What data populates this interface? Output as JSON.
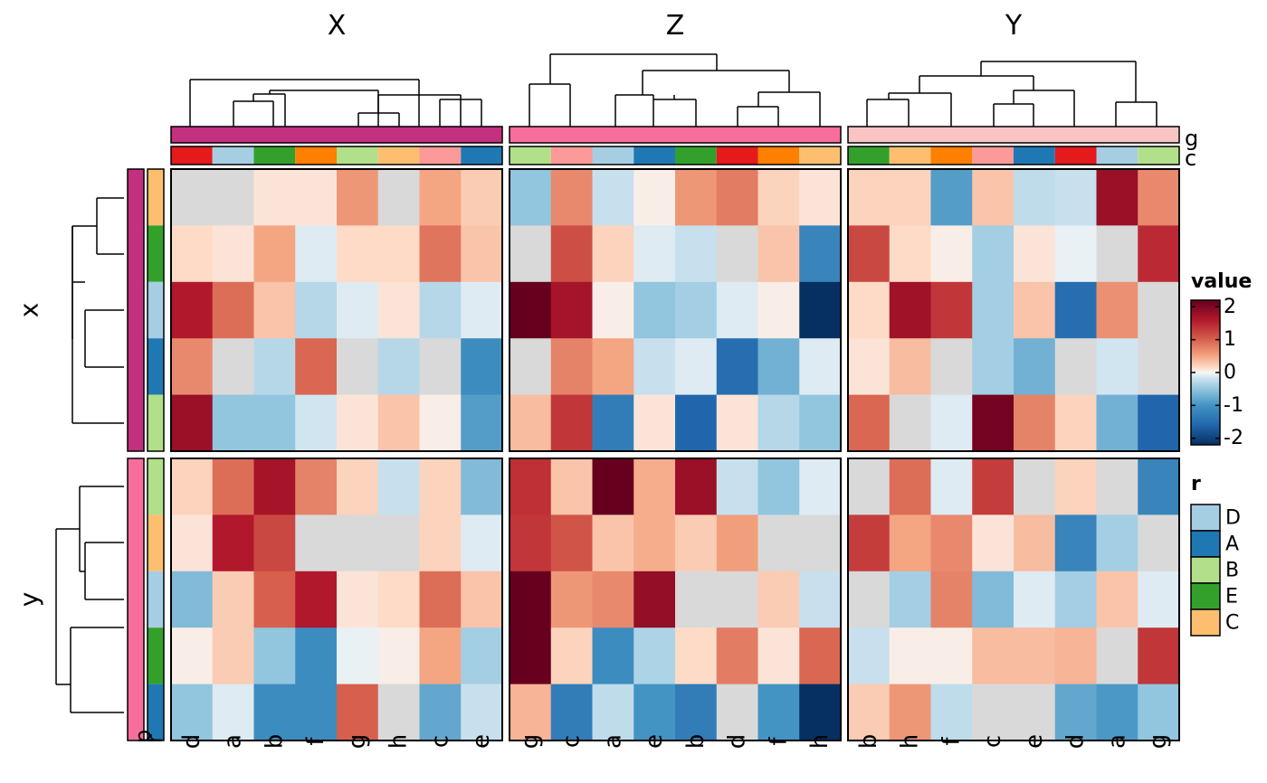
{
  "chart_data": {
    "type": "heatmap",
    "column_groups": [
      {
        "title": "X",
        "columns": [
          "d",
          "a",
          "b",
          "f",
          "g",
          "h",
          "c",
          "e"
        ],
        "g_color": "#C2307F",
        "c_colors": [
          "#E41A1C",
          "#A6CEE3",
          "#33A02C",
          "#FF7F00",
          "#B2DF8A",
          "#FDBF6F",
          "#FB9A99",
          "#1F78B4"
        ]
      },
      {
        "title": "Z",
        "columns": [
          "g",
          "c",
          "a",
          "e",
          "b",
          "d",
          "f",
          "h"
        ],
        "g_color": "#F76D9C",
        "c_colors": [
          "#B2DF8A",
          "#FB9A99",
          "#A6CEE3",
          "#1F78B4",
          "#33A02C",
          "#E41A1C",
          "#FF7F00",
          "#FDBF6F"
        ]
      },
      {
        "title": "Y",
        "columns": [
          "b",
          "h",
          "f",
          "c",
          "e",
          "d",
          "a",
          "g"
        ],
        "g_color": "#FBC4C4",
        "c_colors": [
          "#33A02C",
          "#FDBF6F",
          "#FF7F00",
          "#FB9A99",
          "#1F78B4",
          "#E41A1C",
          "#A6CEE3",
          "#B2DF8A"
        ]
      }
    ],
    "row_groups": [
      {
        "title": "x",
        "p_color": "#C2307F",
        "r_colors": [
          "#FDBF6F",
          "#33A02C",
          "#A6CEE3",
          "#1F78B4",
          "#B2DF8A"
        ]
      },
      {
        "title": "y",
        "p_color": "#F76D9C",
        "r_colors": [
          "#B2DF8A",
          "#FDBF6F",
          "#A6CEE3",
          "#33A02C",
          "#1F78B4"
        ]
      }
    ],
    "values": [
      [
        [
          [
            0,
            0,
            0.1,
            0.1,
            0.6,
            0,
            0.5,
            0.25
          ],
          [
            0.15,
            0.1,
            0.5,
            -0.1,
            0.15,
            0.15,
            0.85,
            0.3
          ],
          [
            1.6,
            0.9,
            0.3,
            -0.3,
            -0.1,
            0.1,
            -0.3,
            -0.1
          ],
          [
            0.7,
            0,
            -0.3,
            0.95,
            0,
            -0.3,
            0,
            -1.1
          ],
          [
            1.8,
            -0.5,
            -0.5,
            -0.15,
            0.1,
            0.3,
            0.05,
            -0.9
          ]
        ],
        [
          [
            -0.5,
            0.7,
            -0.2,
            0.05,
            0.6,
            0.8,
            0.2,
            0.1
          ],
          [
            0,
            1.15,
            0.2,
            -0.1,
            -0.2,
            0,
            0.3,
            -1.2
          ],
          [
            2.3,
            1.7,
            0.05,
            -0.5,
            -0.4,
            -0.1,
            0.05,
            -2.2
          ],
          [
            0,
            0.75,
            0.5,
            -0.2,
            -0.1,
            -1.5,
            -0.7,
            -0.1
          ],
          [
            0.35,
            1.35,
            -1.3,
            0.1,
            -1.6,
            0.1,
            -0.3,
            -0.5
          ]
        ],
        [
          [
            0.2,
            0.2,
            -0.9,
            0.3,
            -0.25,
            -0.2,
            1.8,
            0.7
          ],
          [
            1.2,
            0.15,
            0.05,
            -0.4,
            0.1,
            -0.05,
            0,
            1.45
          ],
          [
            0.15,
            1.75,
            1.35,
            -0.4,
            0.3,
            -1.5,
            0.65,
            0
          ],
          [
            0.1,
            0.35,
            0,
            -0.4,
            -0.7,
            0,
            -0.15,
            0
          ],
          [
            0.95,
            0,
            -0.1,
            2.1,
            0.75,
            0.2,
            -0.7,
            -1.6
          ]
        ]
      ],
      [
        [
          [
            0.2,
            0.9,
            1.7,
            0.75,
            0.2,
            -0.2,
            0.2,
            -0.6
          ],
          [
            0.1,
            1.6,
            1.2,
            0,
            0,
            0,
            0.2,
            -0.1
          ],
          [
            -0.6,
            0.25,
            1.0,
            1.6,
            0.1,
            0.15,
            0.9,
            0.3
          ],
          [
            0.05,
            0.25,
            -0.5,
            -1.1,
            -0.05,
            0.05,
            0.5,
            -0.4
          ],
          [
            -0.5,
            -0.1,
            -1.1,
            -1.1,
            1.0,
            0,
            -0.8,
            -0.2
          ]
        ],
        [
          [
            1.4,
            0.3,
            2.4,
            0.45,
            1.8,
            -0.2,
            -0.5,
            -0.1
          ],
          [
            1.35,
            1.1,
            0.3,
            0.45,
            0.25,
            0.55,
            0,
            0
          ],
          [
            2.4,
            0.6,
            0.7,
            1.85,
            0,
            0,
            0.25,
            -0.2
          ],
          [
            2.4,
            0.2,
            -1.1,
            -0.35,
            0.15,
            0.8,
            0.1,
            0.95
          ],
          [
            0.4,
            -1.3,
            -0.25,
            -1.0,
            -1.3,
            0,
            -1.0,
            -2.6
          ]
        ],
        [
          [
            0,
            0.9,
            -0.1,
            1.3,
            0,
            0.2,
            0,
            -1.2
          ],
          [
            1.3,
            0.5,
            0.7,
            0.1,
            0.35,
            -1.2,
            -0.4,
            0
          ],
          [
            0,
            -0.4,
            0.75,
            -0.6,
            -0.1,
            -0.4,
            0.3,
            -0.1
          ],
          [
            -0.2,
            0.05,
            0.05,
            0.35,
            0.35,
            0.4,
            0,
            1.35
          ],
          [
            0.25,
            0.6,
            -0.25,
            0,
            0,
            -0.8,
            -0.95,
            -0.5
          ]
        ]
      ]
    ],
    "color_scale": {
      "title": "value",
      "min": -2.2,
      "max": 2.2,
      "ticks": [
        2,
        1,
        0,
        -1,
        -2
      ],
      "stops": [
        {
          "v": -2.2,
          "c": "#053061"
        },
        {
          "v": -1.6,
          "c": "#2166AC"
        },
        {
          "v": -1.0,
          "c": "#4393C3"
        },
        {
          "v": -0.5,
          "c": "#92C5DE"
        },
        {
          "v": -0.15,
          "c": "#D1E5F0"
        },
        {
          "v": 0,
          "c": "#F7F7F7"
        },
        {
          "v": 0.15,
          "c": "#FDDBC7"
        },
        {
          "v": 0.5,
          "c": "#F4A582"
        },
        {
          "v": 1.0,
          "c": "#D6604D"
        },
        {
          "v": 1.6,
          "c": "#B2182B"
        },
        {
          "v": 2.2,
          "c": "#67001F"
        }
      ]
    },
    "na_value": 0,
    "na_color": "#D9D9D9",
    "r_legend": {
      "title": "r",
      "items": [
        {
          "label": "D",
          "color": "#A6CEE3"
        },
        {
          "label": "A",
          "color": "#1F78B4"
        },
        {
          "label": "B",
          "color": "#B2DF8A"
        },
        {
          "label": "E",
          "color": "#33A02C"
        },
        {
          "label": "C",
          "color": "#FDBF6F"
        }
      ]
    },
    "annotation_labels": {
      "top": [
        "g",
        "c"
      ],
      "left": [
        "p",
        "r"
      ]
    }
  }
}
